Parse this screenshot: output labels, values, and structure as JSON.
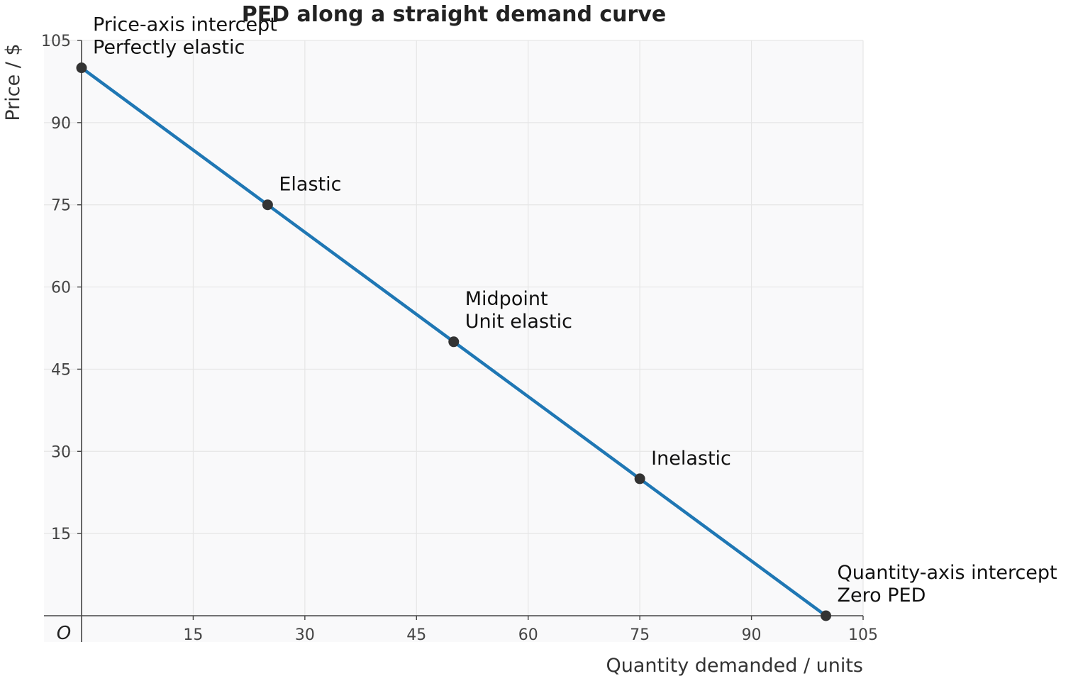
{
  "chart_data": {
    "type": "line",
    "title": "PED along a straight demand curve",
    "xlabel": "Quantity demanded / units",
    "ylabel": "Price / $",
    "origin_label": "O",
    "xlim": [
      0,
      105
    ],
    "ylim": [
      0,
      105
    ],
    "x_ticks": [
      15,
      30,
      45,
      60,
      75,
      90,
      105
    ],
    "y_ticks": [
      15,
      30,
      45,
      60,
      75,
      90,
      105
    ],
    "grid": true,
    "series": [
      {
        "x": [
          0,
          100
        ],
        "y": [
          100,
          0
        ],
        "color": "#1f77b4"
      }
    ],
    "points": [
      {
        "x": 0,
        "y": 100,
        "label": [
          "Price-axis intercept",
          "Perfectly elastic"
        ]
      },
      {
        "x": 25,
        "y": 75,
        "label": [
          "Elastic"
        ]
      },
      {
        "x": 50,
        "y": 50,
        "label": [
          "Midpoint",
          "Unit elastic"
        ]
      },
      {
        "x": 75,
        "y": 25,
        "label": [
          "Inelastic"
        ]
      },
      {
        "x": 100,
        "y": 0,
        "label": [
          "Quantity-axis intercept",
          "Zero PED"
        ]
      }
    ],
    "colors": {
      "line": "#1f77b4",
      "point": "#333333",
      "plot_background": "#f9f9fa",
      "grid": "#e6e6e6",
      "axis": "#444444"
    }
  }
}
